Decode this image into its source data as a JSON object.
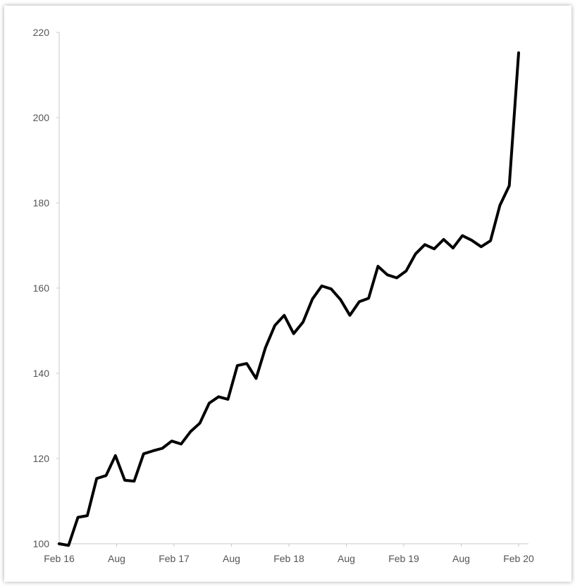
{
  "chart_data": {
    "type": "line",
    "title": "",
    "xlabel": "",
    "ylabel": "",
    "ylim": [
      100,
      220
    ],
    "y_ticks": [
      "100",
      "120",
      "140",
      "160",
      "180",
      "200",
      "220"
    ],
    "x_ticks": [
      "Feb 16",
      "Aug",
      "Feb 17",
      "Aug",
      "Feb 18",
      "Aug",
      "Feb 19",
      "Aug",
      "Feb 20"
    ],
    "grid": false,
    "legend": "none",
    "line_color": "#000000",
    "series": [
      {
        "values": [
          100,
          99.6,
          106.2,
          106.6,
          115.3,
          116,
          120.7,
          114.9,
          114.7,
          121.1,
          121.8,
          122.4,
          124.1,
          123.4,
          126.3,
          128.3,
          133,
          134.5,
          133.9,
          141.8,
          142.3,
          138.8,
          146,
          151.2,
          153.6,
          149.3,
          152,
          157.4,
          160.5,
          159.8,
          157.3,
          153.6,
          156.8,
          157.6,
          165.1,
          163.1,
          162.4,
          164,
          168,
          170.2,
          169.2,
          171.4,
          169.4,
          172.3,
          171.2,
          169.7,
          171.1,
          179.4,
          184,
          215.2
        ]
      }
    ]
  }
}
